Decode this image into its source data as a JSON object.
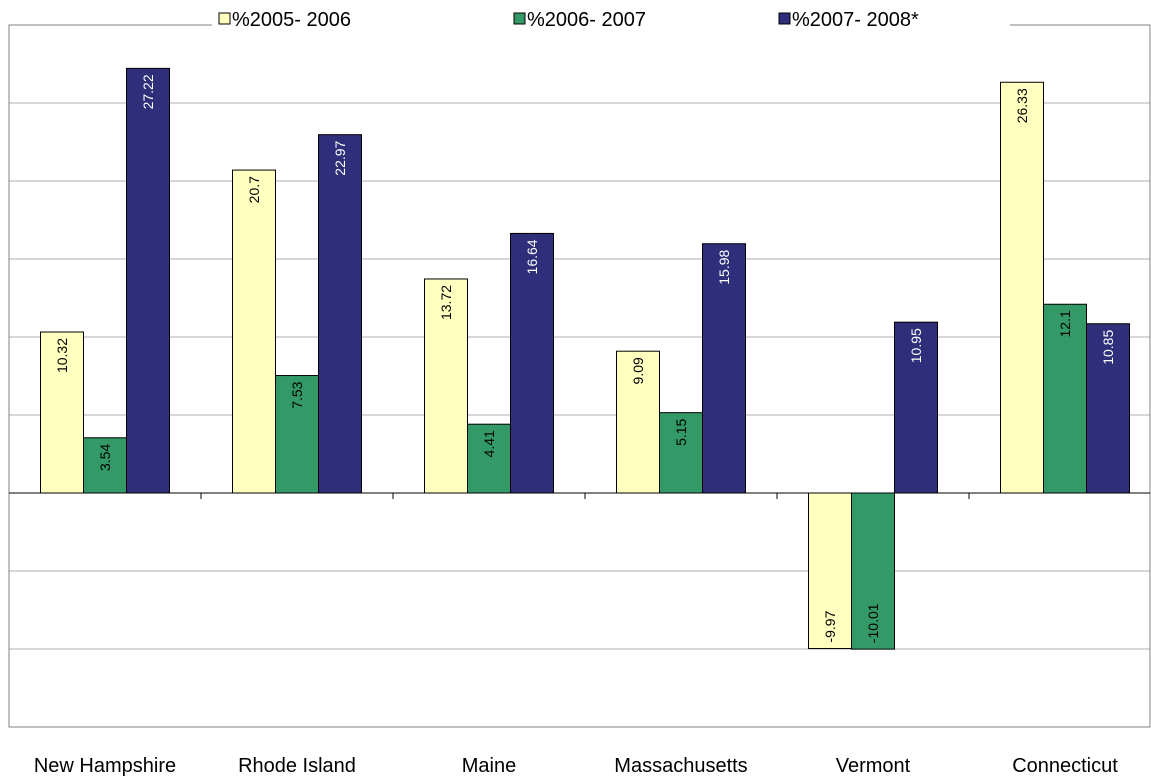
{
  "chart_data": {
    "type": "bar",
    "categories": [
      "New Hampshire",
      "Rhode Island",
      "Maine",
      "Massachusetts",
      "Vermont",
      "Connecticut"
    ],
    "series": [
      {
        "name": "%2005- 2006",
        "color": "#ffffc0",
        "values": [
          10.32,
          20.7,
          13.72,
          9.09,
          -9.97,
          26.33
        ]
      },
      {
        "name": "%2006- 2007",
        "color": "#339966",
        "values": [
          3.54,
          7.53,
          4.41,
          5.15,
          -10.01,
          12.1
        ]
      },
      {
        "name": "%2007- 2008*",
        "color": "#2e2e7a",
        "values": [
          27.22,
          22.97,
          16.64,
          15.98,
          10.95,
          10.85
        ]
      }
    ],
    "ylim": [
      -15,
      30
    ],
    "yticks": [
      -15,
      -10,
      -5,
      0,
      5,
      10,
      15,
      20,
      25,
      30
    ],
    "grid": true,
    "legend": "top"
  }
}
